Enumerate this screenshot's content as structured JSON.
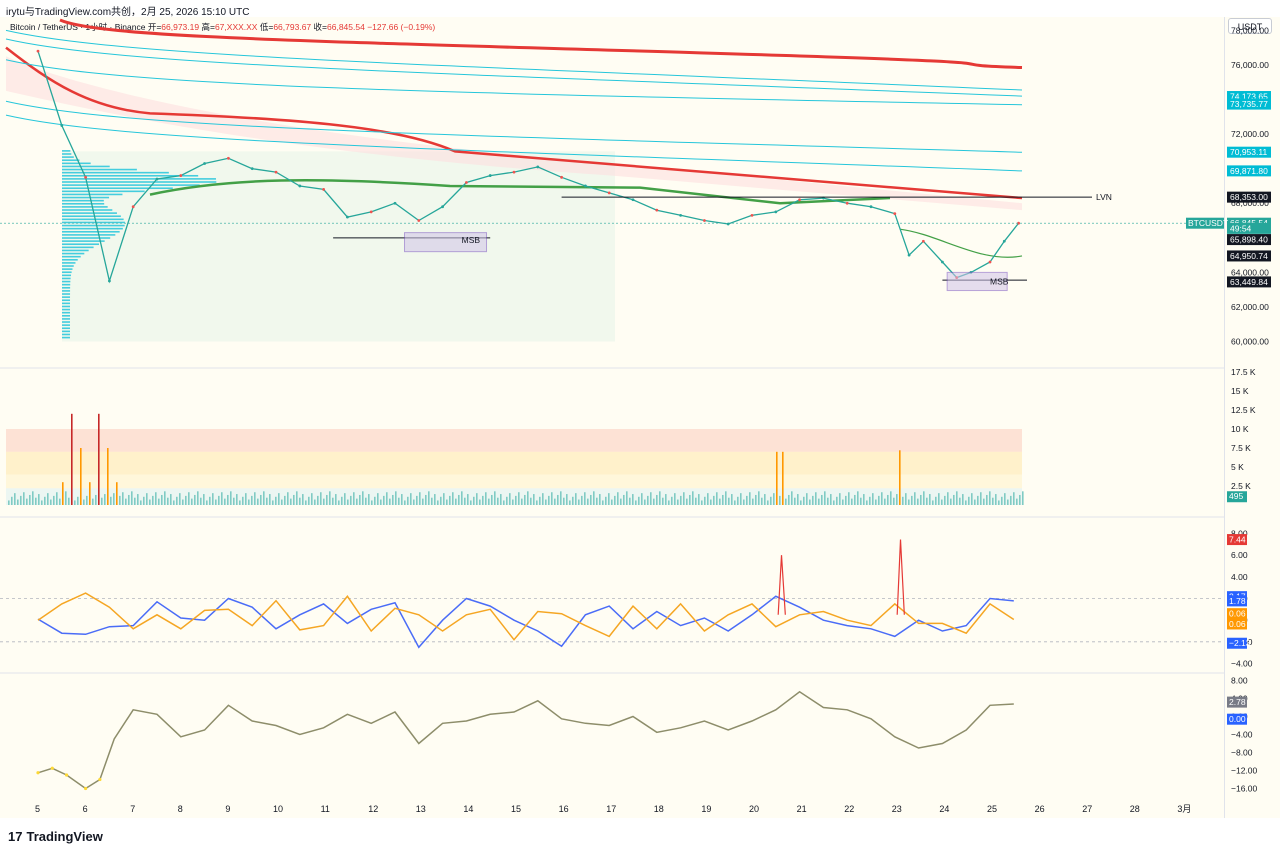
{
  "header": {
    "author_line": "irytu与TradingView.com共创，2月 25, 2026 15:10 UTC"
  },
  "legend": {
    "symbol": "Bitcoin / TetherUS · 1小时 · Binance",
    "open_label": "开=",
    "open": "66,973.19",
    "high_label": "高=",
    "high": "67,XXX.XX",
    "low_label": "低=",
    "low": "66,793.67",
    "close_label": "收=",
    "close": "66,845.54",
    "change": "−127.66 (−0.19%)"
  },
  "currency": "USDT",
  "branding": {
    "logo_text": "TradingView",
    "logo_mark": "17"
  },
  "chart_data": [
    {
      "type": "line",
      "title": "",
      "panel": "price",
      "y_ticks": [
        "78,000.00",
        "76,000.00",
        "74,000.00",
        "72,000.00",
        "70,000.00",
        "68,000.00",
        "66,000.00",
        "64,000.00",
        "62,000.00",
        "60,000.00"
      ],
      "ylim": [
        59800,
        78600
      ],
      "x_ticks": [
        "5",
        "6",
        "7",
        "8",
        "9",
        "10",
        "11",
        "12",
        "13",
        "14",
        "15",
        "16",
        "17",
        "18",
        "19",
        "20",
        "21",
        "22",
        "23",
        "24",
        "25",
        "26",
        "27",
        "28",
        "3月"
      ],
      "series": [
        {
          "name": "BTCUSDT",
          "x": [
            "5",
            "5.5",
            "6",
            "6.5",
            "7",
            "7.5",
            "8",
            "8.5",
            "9",
            "9.5",
            "10",
            "10.5",
            "11",
            "11.5",
            "12",
            "12.5",
            "13",
            "13.5",
            "14",
            "14.5",
            "15",
            "15.5",
            "16",
            "16.5",
            "17",
            "17.5",
            "18",
            "18.5",
            "19",
            "19.5",
            "20",
            "20.5",
            "21",
            "21.5",
            "22",
            "22.5",
            "23",
            "23.3",
            "23.6",
            "24",
            "24.3",
            "24.6",
            "25",
            "25.3",
            "25.6"
          ],
          "values": [
            76800,
            72500,
            69500,
            63500,
            67800,
            69400,
            69600,
            70300,
            70600,
            70000,
            69800,
            69000,
            68800,
            67200,
            67500,
            68000,
            67000,
            67800,
            69200,
            69600,
            69800,
            70100,
            69500,
            69000,
            68600,
            68200,
            67600,
            67300,
            67000,
            66800,
            67300,
            67500,
            68200,
            68300,
            68000,
            67800,
            67400,
            65000,
            65800,
            64600,
            63700,
            64000,
            64600,
            65800,
            66845.54
          ]
        }
      ],
      "price_labels": [
        {
          "value": "74,173.65",
          "color": "#00bcd4"
        },
        {
          "value": "73,735.77",
          "color": "#00bcd4"
        },
        {
          "value": "70,953.11",
          "color": "#00bcd4"
        },
        {
          "value": "69,871.80",
          "color": "#00bcd4"
        },
        {
          "value": "68,353.00",
          "color": "#131722"
        },
        {
          "value": "66,845.54",
          "color": "#26a69a"
        },
        {
          "value": "49:54",
          "color": "#26a69a"
        },
        {
          "value": "65,898.40",
          "color": "#131722"
        },
        {
          "value": "64,950.74",
          "color": "#131722"
        },
        {
          "value": "63,449.84",
          "color": "#131722"
        }
      ],
      "symbol_tag": "BTCUSDT",
      "annotations": [
        "LVN",
        "MSB",
        "MSB"
      ],
      "colors": {
        "band_red": "#e53935",
        "band_green": "#43a047",
        "teal": "#26c6da"
      }
    },
    {
      "type": "bar",
      "title": "",
      "panel": "volume",
      "y_ticks": [
        "17.5 K",
        "15 K",
        "12.5 K",
        "10 K",
        "7.5 K",
        "5 K",
        "2.5 K"
      ],
      "ylim": [
        0,
        17500
      ],
      "last_value": "495",
      "colors": {
        "normal": "#80cbc4",
        "high": "#ff9800",
        "extreme": "#c62828"
      }
    },
    {
      "type": "line",
      "title": "",
      "panel": "oscillator",
      "y_ticks": [
        "8.00",
        "6.00",
        "4.00",
        "2.00",
        "0.00",
        "−2.00",
        "−4.00"
      ],
      "ylim": [
        -4.6,
        8.6
      ],
      "series": [
        {
          "name": "",
          "color": "#4a6cf7",
          "x": [
            "5",
            "5.5",
            "6",
            "6.5",
            "7",
            "7.5",
            "8",
            "8.5",
            "9",
            "9.5",
            "10",
            "10.5",
            "11",
            "11.5",
            "12",
            "12.5",
            "13",
            "13.5",
            "14",
            "14.5",
            "15",
            "15.5",
            "16",
            "16.5",
            "17",
            "17.5",
            "18",
            "18.5",
            "19",
            "19.5",
            "20",
            "20.5",
            "21",
            "21.5",
            "22",
            "22.5",
            "23",
            "23.5",
            "24",
            "24.5",
            "25",
            "25.5"
          ],
          "values": [
            0.1,
            -1.2,
            -1.3,
            -0.6,
            -0.5,
            1.7,
            0.2,
            0.0,
            2.0,
            1.2,
            -0.8,
            0.5,
            1.5,
            -0.3,
            1.0,
            1.6,
            -2.5,
            0.0,
            2.0,
            1.3,
            0.0,
            -1.0,
            -2.4,
            0.5,
            1.3,
            -0.8,
            0.8,
            -0.5,
            0.2,
            -1.0,
            0.5,
            2.2,
            1.2,
            0.0,
            -0.5,
            -0.8,
            -1.5,
            0.0,
            -1.0,
            -0.5,
            2.0,
            1.78
          ]
        },
        {
          "name": "",
          "color": "#f5a623",
          "x": [
            "5",
            "5.5",
            "6",
            "6.5",
            "7",
            "7.5",
            "8",
            "8.5",
            "9",
            "9.5",
            "10",
            "10.5",
            "11",
            "11.5",
            "12",
            "12.5",
            "13",
            "13.5",
            "14",
            "14.5",
            "15",
            "15.5",
            "16",
            "16.5",
            "17",
            "17.5",
            "18",
            "18.5",
            "19",
            "19.5",
            "20",
            "20.5",
            "21",
            "21.5",
            "22",
            "22.5",
            "23",
            "23.5",
            "24",
            "24.5",
            "25",
            "25.5"
          ],
          "values": [
            0.0,
            1.5,
            2.5,
            1.2,
            -0.8,
            0.5,
            -0.8,
            0.9,
            1.0,
            -0.5,
            1.8,
            -0.9,
            -0.5,
            2.2,
            -1.0,
            1.1,
            0.5,
            -1.0,
            0.5,
            1.0,
            -1.8,
            0.8,
            0.6,
            -0.5,
            -1.5,
            1.3,
            -0.8,
            1.5,
            -1.0,
            0.5,
            1.5,
            -0.6,
            0.5,
            0.8,
            0.0,
            -0.5,
            1.5,
            -0.3,
            -0.3,
            -1.2,
            1.5,
            0.06
          ]
        }
      ],
      "labels": [
        {
          "value": "7.44",
          "color": "#e53935"
        },
        {
          "value": "2.17",
          "color": "#2962ff"
        },
        {
          "value": "1.78",
          "color": "#2962ff"
        },
        {
          "value": "0.06",
          "color": "#ff9800"
        },
        {
          "value": "0.06",
          "color": "#ff9800"
        },
        {
          "value": "−2.13",
          "color": "#2962ff"
        }
      ]
    },
    {
      "type": "line",
      "title": "",
      "panel": "momentum",
      "y_ticks": [
        "8.00",
        "4.00",
        "0.00",
        "−4.00",
        "−8.00",
        "−12.00",
        "−16.00"
      ],
      "ylim": [
        -17,
        9
      ],
      "series": [
        {
          "name": "",
          "color": "#8d8d6a",
          "x": [
            "5",
            "5.3",
            "5.6",
            "6",
            "6.3",
            "6.6",
            "7",
            "7.5",
            "8",
            "8.5",
            "9",
            "9.5",
            "10",
            "10.5",
            "11",
            "11.5",
            "12",
            "12.5",
            "13",
            "13.5",
            "14",
            "14.5",
            "15",
            "15.5",
            "16",
            "16.5",
            "17",
            "17.5",
            "18",
            "18.5",
            "19",
            "19.5",
            "20",
            "20.5",
            "21",
            "21.5",
            "22",
            "22.5",
            "23",
            "23.5",
            "24",
            "24.5",
            "25",
            "25.5"
          ],
          "values": [
            -12.5,
            -11.5,
            -13.0,
            -16.0,
            -14.0,
            -5.0,
            1.5,
            0.5,
            -4.5,
            -3.0,
            2.5,
            -1.0,
            -2.0,
            -4.0,
            -2.5,
            0.5,
            -1.5,
            1.0,
            -6.0,
            -1.5,
            -1.0,
            0.5,
            1.0,
            3.5,
            -0.5,
            -1.5,
            -2.0,
            0.0,
            -3.5,
            -2.5,
            -1.0,
            -3.0,
            -1.0,
            1.5,
            5.5,
            2.0,
            1.5,
            -0.5,
            -4.5,
            -7.0,
            -6.0,
            -3.0,
            2.5,
            2.78
          ]
        }
      ],
      "labels": [
        {
          "value": "2.78",
          "color": "#787b86"
        },
        {
          "value": "0.00",
          "color": "#2962ff"
        }
      ]
    }
  ]
}
